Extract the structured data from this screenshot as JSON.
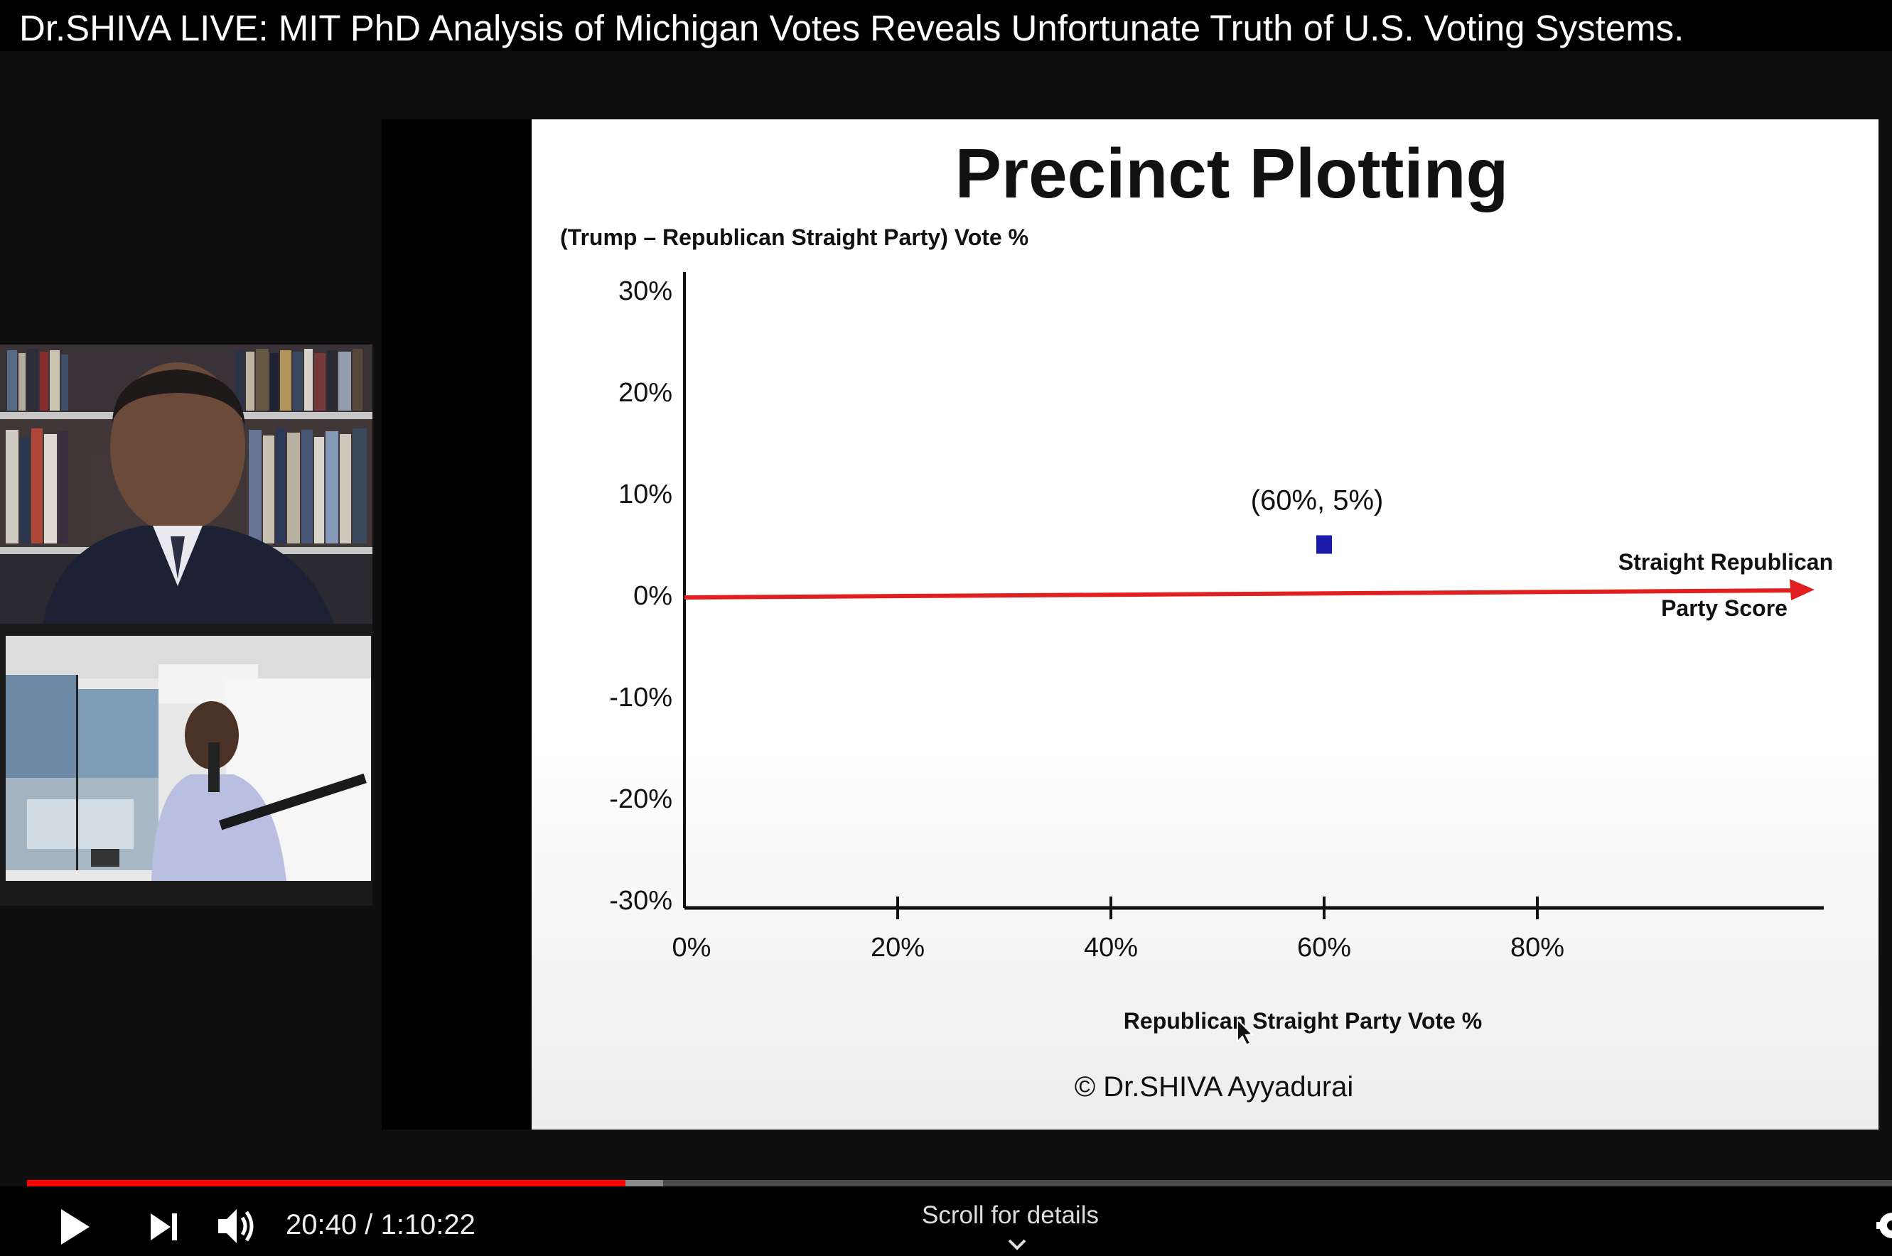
{
  "video": {
    "title": "Dr.SHIVA LIVE: MIT PhD Analysis of Michigan Votes Reveals Unfortunate Truth of U.S. Voting Systems."
  },
  "slide": {
    "copyright": "© Dr.SHIVA Ayyadurai"
  },
  "chart_data": {
    "type": "scatter",
    "title": "Precinct Plotting",
    "ylabel": "(Trump – Republican Straight Party) Vote %",
    "xlabel": "Republican Straight Party Vote %",
    "x_ticks": [
      "0%",
      "20%",
      "40%",
      "60%",
      "80%"
    ],
    "y_ticks": [
      "30%",
      "20%",
      "10%",
      "0%",
      "-10%",
      "-20%",
      "-30%"
    ],
    "xlim": [
      0,
      90
    ],
    "ylim": [
      -30,
      30
    ],
    "points": [
      {
        "x": 60,
        "y": 5,
        "label": "(60%, 5%)",
        "color": "#1a1aa8"
      }
    ],
    "reference_line": {
      "label_line1": "Straight Republican",
      "label_line2": "Party Score",
      "y": 0,
      "color": "#e02020"
    }
  },
  "player": {
    "time_current": "20:40",
    "time_separator": " / ",
    "time_total": "1:10:22",
    "played_fraction": 0.3209,
    "buffered_fraction": 0.3409,
    "scroll_hint": "Scroll for details",
    "accent_color": "#ff0000"
  }
}
